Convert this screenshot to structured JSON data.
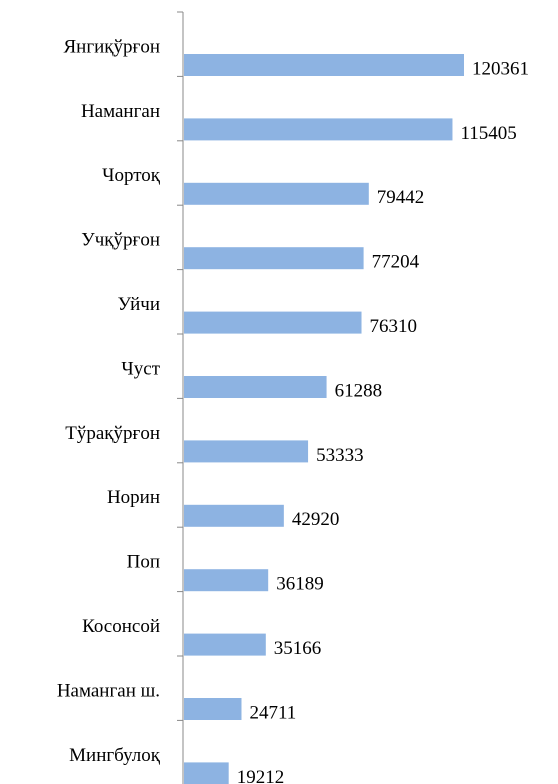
{
  "chart_data": {
    "type": "bar",
    "orientation": "horizontal",
    "categories": [
      "Янгиқўрғон",
      "Наманган",
      "Чортоқ",
      "Учқўрғон",
      "Уйчи",
      "Чуст",
      "Тўрақўрғон",
      "Норин",
      "Поп",
      "Косонсой",
      "Наманган ш.",
      "Мингбулоқ"
    ],
    "values": [
      120361,
      115405,
      79442,
      77204,
      76310,
      61288,
      53333,
      42920,
      36189,
      35166,
      24711,
      19212
    ],
    "color": "#8db3e2"
  }
}
